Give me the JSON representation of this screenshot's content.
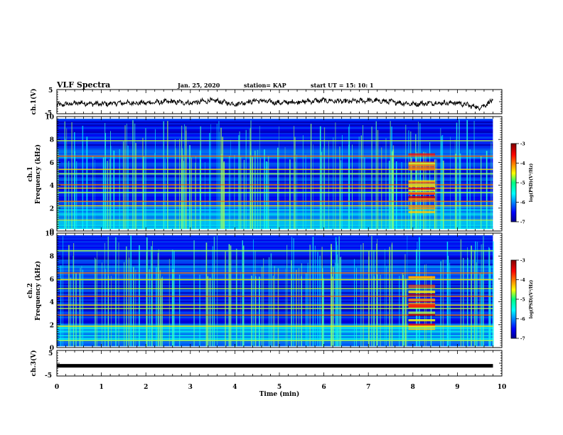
{
  "header": {
    "title": "VLF Spectra",
    "date": "Jan. 25, 2020",
    "station": "station= KAP",
    "start_time": "start  UT =   15: 10: 1"
  },
  "chart_data": [
    {
      "type": "line",
      "ylabel": "ch.1(V)",
      "xlim": [
        0,
        10
      ],
      "ylim": [
        -5,
        5
      ],
      "y_ticks": [
        "5",
        "-5"
      ],
      "description_points_x": [
        0,
        0.5,
        1,
        1.5,
        2,
        2.5,
        3,
        3.5,
        4,
        4.5,
        5,
        5.5,
        6,
        6.5,
        7,
        7.5,
        8,
        8.5,
        9,
        9.5,
        9.8
      ],
      "description_points_y": [
        -1.5,
        -0.5,
        -1,
        -0.5,
        -0.5,
        0,
        -0.5,
        0.5,
        -1,
        0.5,
        -0.5,
        0,
        0.5,
        0,
        0.5,
        0,
        -1,
        -0.5,
        -0.5,
        -2.5,
        0.5
      ]
    },
    {
      "type": "heatmap",
      "ylabel_line1": "ch.1",
      "ylabel_line2": "Frequency  (kHz)",
      "xlim": [
        0,
        10
      ],
      "ylim": [
        0,
        10
      ],
      "y_ticks": [
        "0",
        "2",
        "4",
        "6",
        "8",
        "10"
      ],
      "bright_bands_khz": [
        0.8,
        2.1,
        2.5,
        3.3,
        3.7,
        4.0,
        5.0,
        5.4,
        6.6,
        8.0
      ],
      "burst_interval_min": [
        7.9,
        8.5
      ],
      "colorbar": {
        "label": "log(PSD)(V²/Hz)",
        "range": [
          -7,
          -3
        ],
        "ticks": [
          "-3",
          "-4",
          "-5",
          "-6",
          "-7"
        ]
      }
    },
    {
      "type": "heatmap",
      "ylabel_line1": "ch.2",
      "ylabel_line2": "Frequency  (kHz)",
      "xlim": [
        0,
        10
      ],
      "ylim": [
        0,
        10
      ],
      "y_ticks": [
        "0",
        "2",
        "4",
        "6",
        "8",
        "10"
      ],
      "bright_bands_khz": [
        0.5,
        1.8,
        2.8,
        3.4,
        3.7,
        4.5,
        5.2,
        6.0,
        6.6,
        8.6
      ],
      "burst_interval_min": [
        7.9,
        8.5
      ],
      "colorbar": {
        "label": "log(PSD)(V²/Hz)",
        "range": [
          -7,
          -3
        ],
        "ticks": [
          "-3",
          "-4",
          "-5",
          "-6",
          "-7"
        ]
      }
    },
    {
      "type": "line",
      "ylabel": "ch.3(V)",
      "xlabel": "Time  (min)",
      "xlim": [
        0,
        10
      ],
      "ylim": [
        -5,
        5
      ],
      "y_ticks": [
        "5",
        "-5"
      ],
      "x_ticks": [
        "0",
        "1",
        "2",
        "3",
        "4",
        "5",
        "6",
        "7",
        "8",
        "9",
        "10"
      ],
      "x": [
        0,
        9.8
      ],
      "y": [
        -1,
        -1
      ]
    }
  ],
  "colors": {
    "jet_low": "#00008f",
    "jet_mid": "#00ff80",
    "jet_high": "#800000",
    "line": "#000000"
  }
}
